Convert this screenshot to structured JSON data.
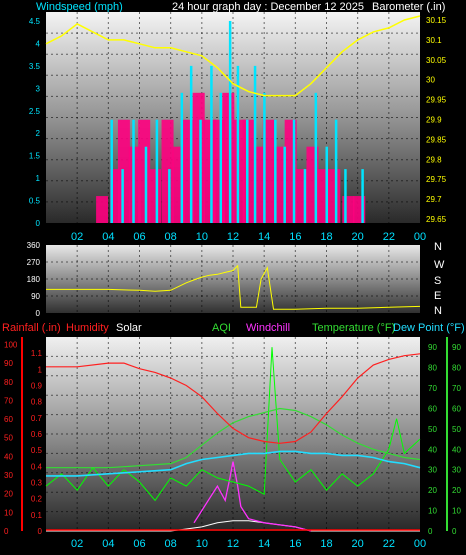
{
  "header": {
    "windspeed_label": "Windspeed (mph)",
    "title": "24 hour graph day : December 12 2025",
    "barometer_label": "Barometer (.in)"
  },
  "middle": {
    "compass": [
      "N",
      "W",
      "S",
      "E",
      "N"
    ]
  },
  "bottom_header": {
    "rainfall": "Rainfall (.in)",
    "humidity": "Humidity",
    "solar": "Solar",
    "aqi": "AQI",
    "windchill": "Windchill",
    "temperature": "Temperature (°F)",
    "dewpoint": "Dew Point (°F)"
  },
  "colors": {
    "windspeed": "#00e5ff",
    "gust": "#ff0080",
    "barometer": "#ffff00",
    "direction": "#ffff00",
    "humidity": "#ff2020",
    "temperature": "#33dd33",
    "dewpoint": "#22ddff",
    "aqi": "#00ff00",
    "windchill": "#ff33ff",
    "solar": "#ffffff",
    "rainfall": "#ff0000",
    "grid": "#000000",
    "tick_text_left": "#00e5ff",
    "tick_text_right": "#ffff00"
  },
  "chart_data": [
    {
      "type": "line",
      "name": "wind-barometer",
      "x_ticks": [
        "02",
        "04",
        "06",
        "08",
        "10",
        "12",
        "14",
        "16",
        "18",
        "20",
        "22",
        "00"
      ],
      "y_left_ticks": [
        "0",
        "0.5",
        "1",
        "1.5",
        "2",
        "2.5",
        "3",
        "3.5",
        "4",
        "4.5"
      ],
      "y_left_range": [
        0,
        4.7
      ],
      "y_right_ticks": [
        "29.65",
        "29.7",
        "29.75",
        "29.8",
        "29.85",
        "29.9",
        "29.95",
        "30",
        "30.05",
        "30.1",
        "30.15"
      ],
      "y_right_range": [
        29.64,
        30.17
      ],
      "barometer": {
        "hours": [
          0,
          1,
          2,
          3,
          4,
          5,
          6,
          7,
          8,
          9,
          10,
          11,
          12,
          13,
          14,
          15,
          16,
          17,
          18,
          19,
          20,
          21,
          22,
          23,
          24
        ],
        "values": [
          30.09,
          30.11,
          30.14,
          30.12,
          30.1,
          30.1,
          30.09,
          30.08,
          30.08,
          30.07,
          30.06,
          30.03,
          29.99,
          29.97,
          29.96,
          29.96,
          29.96,
          29.99,
          30.03,
          30.07,
          30.1,
          30.12,
          30.13,
          30.15,
          30.16
        ]
      },
      "windspeed": {
        "hours": [
          4.2,
          4.9,
          5.6,
          6.4,
          7.1,
          7.9,
          8.7,
          9.3,
          9.9,
          10.6,
          11.2,
          11.8,
          12.3,
          12.9,
          13.4,
          14.0,
          14.7,
          15.3,
          15.9,
          16.6,
          17.3,
          18.0,
          18.6,
          19.2,
          20.3
        ],
        "values": [
          2.3,
          1.2,
          2.3,
          1.7,
          2.3,
          1.2,
          2.9,
          3.5,
          2.3,
          3.5,
          2.9,
          4.5,
          3.5,
          2.3,
          3.5,
          2.9,
          2.3,
          1.7,
          2.3,
          1.2,
          2.9,
          1.7,
          2.3,
          1.2,
          1.2
        ]
      },
      "gust": {
        "hours": [
          3.6,
          4.5,
          5.0,
          5.7,
          6.3,
          7.0,
          7.8,
          8.5,
          9.1,
          9.8,
          10.5,
          11.1,
          11.7,
          12.4,
          13.0,
          13.7,
          14.3,
          15.0,
          15.7,
          16.4,
          17.1,
          17.8,
          18.5,
          19.4,
          20.1
        ],
        "values": [
          0.6,
          1.2,
          2.3,
          1.7,
          2.3,
          1.2,
          2.3,
          1.7,
          2.3,
          2.9,
          2.3,
          2.3,
          2.9,
          2.3,
          2.3,
          1.7,
          2.3,
          1.7,
          2.3,
          1.2,
          1.7,
          1.2,
          1.2,
          0.6,
          0.6
        ]
      }
    },
    {
      "type": "line",
      "name": "wind-direction",
      "y_ticks": [
        "0",
        "90",
        "180",
        "270",
        "360"
      ],
      "y_range": [
        0,
        360
      ],
      "hours": [
        0,
        2,
        4,
        6,
        7,
        8,
        8.5,
        9,
        9.5,
        10,
        10.5,
        11,
        11.5,
        12,
        12.3,
        12.5,
        13,
        13.5,
        13.8,
        14.2,
        14.6,
        15,
        16,
        18,
        20,
        22,
        24
      ],
      "values": [
        125,
        125,
        125,
        120,
        115,
        120,
        140,
        160,
        175,
        190,
        200,
        205,
        215,
        225,
        250,
        30,
        30,
        30,
        180,
        240,
        20,
        20,
        20,
        25,
        25,
        30,
        35
      ]
    },
    {
      "type": "line",
      "name": "temp-humidity",
      "y_rain_ticks": [
        "0",
        "0.1",
        "0.2",
        "0.3",
        "0.4",
        "0.5",
        "0.6",
        "0.7",
        "0.8",
        "0.9",
        "1",
        "1.1"
      ],
      "y_rain_range": [
        0,
        1.2
      ],
      "y_humidity_ticks": [
        "0",
        "10",
        "20",
        "30",
        "40",
        "50",
        "60",
        "70",
        "80",
        "90",
        "100"
      ],
      "y_humidity_range": [
        0,
        104
      ],
      "y_temp_ticks": [
        "0",
        "10",
        "20",
        "30",
        "40",
        "50",
        "60",
        "70",
        "80",
        "90"
      ],
      "y_temp_range": [
        0,
        95
      ],
      "humidity": {
        "hours": [
          0,
          2,
          4,
          5,
          6,
          7,
          8,
          9,
          10,
          11,
          12,
          13,
          14,
          15,
          16,
          17,
          18,
          19,
          20,
          21,
          22,
          23,
          24
        ],
        "values": [
          88,
          88,
          90,
          90,
          87,
          85,
          82,
          78,
          72,
          63,
          55,
          50,
          48,
          47,
          48,
          53,
          63,
          72,
          82,
          89,
          92,
          94,
          95
        ]
      },
      "temperature": {
        "hours": [
          0,
          2,
          4,
          6,
          8,
          9,
          10,
          11,
          12,
          13,
          14,
          15,
          16,
          17,
          18,
          19,
          20,
          21,
          22,
          23,
          24
        ],
        "values": [
          31,
          31,
          31,
          32,
          33,
          36,
          42,
          48,
          53,
          56,
          58,
          60,
          59,
          56,
          52,
          47,
          43,
          40,
          38,
          36,
          35
        ]
      },
      "dewpoint": {
        "hours": [
          0,
          2,
          4,
          6,
          8,
          9,
          10,
          11,
          12,
          13,
          14,
          15,
          16,
          17,
          18,
          19,
          20,
          21,
          22,
          23,
          24
        ],
        "values": [
          27,
          27,
          28,
          29,
          30,
          33,
          35,
          36,
          37,
          38,
          38,
          39,
          39,
          38,
          38,
          37,
          37,
          36,
          34,
          33,
          31
        ]
      },
      "aqi": {
        "hours": [
          0,
          1,
          2,
          3,
          4,
          5,
          6,
          7,
          8,
          9,
          10,
          11,
          12,
          13,
          14,
          14.5,
          15,
          16,
          17,
          18,
          19,
          20,
          21,
          22,
          22.5,
          23,
          24
        ],
        "values": [
          22,
          28,
          20,
          31,
          22,
          30,
          24,
          15,
          26,
          22,
          30,
          26,
          24,
          22,
          18,
          90,
          35,
          24,
          30,
          20,
          28,
          22,
          28,
          40,
          55,
          38,
          45
        ]
      },
      "windchill": {
        "hours": [
          9.5,
          10,
          10.5,
          11,
          11.5,
          11.8,
          12,
          12.3,
          12.5,
          13,
          14,
          15,
          16,
          17
        ],
        "values": [
          4,
          10,
          16,
          22,
          15,
          26,
          34,
          22,
          12,
          6,
          4,
          3,
          2,
          0
        ]
      },
      "solar": {
        "hours": [
          0,
          8,
          9,
          10,
          11,
          12,
          13,
          14,
          15,
          16,
          17,
          24
        ],
        "values": [
          0,
          0,
          1,
          2,
          4,
          5,
          5,
          4,
          3,
          2,
          0,
          0
        ]
      }
    }
  ]
}
